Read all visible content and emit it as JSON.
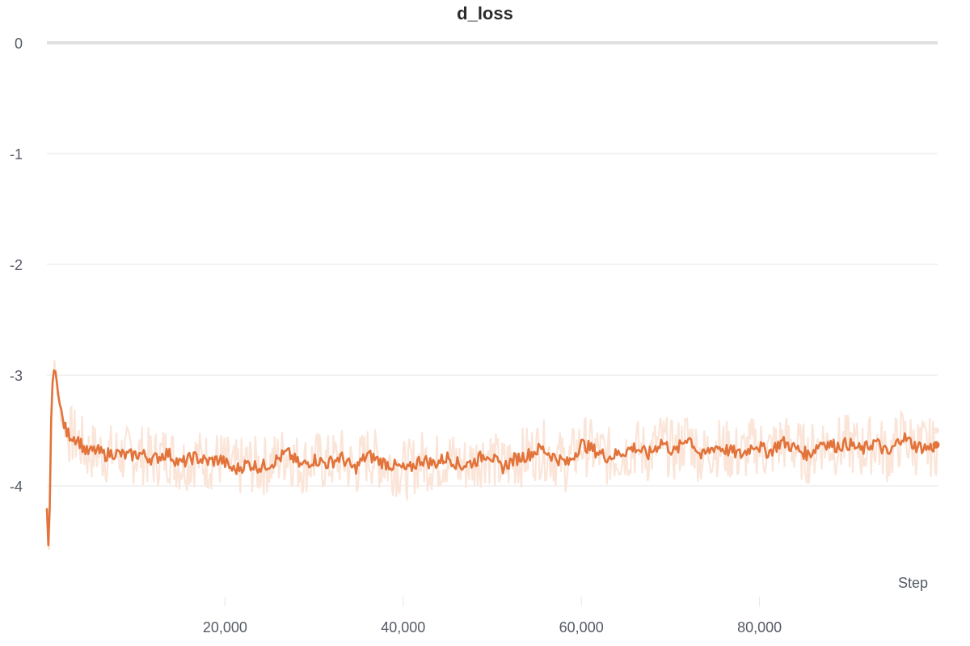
{
  "chart_data": {
    "type": "line",
    "title": "d_loss",
    "xlabel": "Step",
    "ylabel": "",
    "xlim": [
      0,
      100000
    ],
    "ylim": [
      -5,
      0
    ],
    "x_ticks": [
      20000,
      40000,
      60000,
      80000
    ],
    "x_tick_labels": [
      "20,000",
      "40,000",
      "60,000",
      "80,000"
    ],
    "y_ticks": [
      0,
      -1,
      -2,
      -3,
      -4
    ],
    "y_tick_labels": [
      "0",
      "-1",
      "-2",
      "-3",
      "-4"
    ],
    "grid": true,
    "colors": {
      "line": "#e2733a",
      "raw": "#fbe5d9",
      "grid": "#e6e6e6",
      "zero_line": "#e0e0e0"
    },
    "series": [
      {
        "style": "smoothed",
        "x": [
          0,
          200,
          350,
          500,
          700,
          1000,
          1300,
          1700,
          2200,
          2800,
          3500,
          4500,
          5500,
          6500,
          7500,
          9000,
          10500,
          12000,
          13500,
          15000,
          16500,
          18000,
          19500,
          21000,
          22500,
          24000,
          25500,
          27000,
          28500,
          30000,
          31500,
          33000,
          34500,
          36000,
          37500,
          39000,
          40500,
          42000,
          43500,
          45000,
          46500,
          48000,
          49500,
          51000,
          52500,
          54000,
          55500,
          57000,
          58500,
          60000,
          61500,
          63000,
          64500,
          66000,
          67500,
          69000,
          70500,
          72000,
          73500,
          75000,
          76500,
          78000,
          79500,
          81000,
          82500,
          84000,
          85500,
          87000,
          88500,
          90000,
          91500,
          93000,
          94500,
          96000,
          97500,
          99000,
          100000
        ],
        "y": [
          -4.2,
          -4.62,
          -4.1,
          -3.3,
          -2.95,
          -2.97,
          -3.2,
          -3.38,
          -3.52,
          -3.55,
          -3.58,
          -3.7,
          -3.68,
          -3.72,
          -3.7,
          -3.73,
          -3.71,
          -3.76,
          -3.7,
          -3.8,
          -3.74,
          -3.78,
          -3.76,
          -3.86,
          -3.8,
          -3.83,
          -3.78,
          -3.7,
          -3.82,
          -3.76,
          -3.8,
          -3.74,
          -3.85,
          -3.72,
          -3.78,
          -3.82,
          -3.86,
          -3.76,
          -3.8,
          -3.74,
          -3.82,
          -3.78,
          -3.7,
          -3.84,
          -3.76,
          -3.72,
          -3.66,
          -3.74,
          -3.8,
          -3.62,
          -3.68,
          -3.74,
          -3.7,
          -3.65,
          -3.72,
          -3.6,
          -3.7,
          -3.55,
          -3.74,
          -3.64,
          -3.68,
          -3.72,
          -3.62,
          -3.7,
          -3.6,
          -3.66,
          -3.72,
          -3.6,
          -3.64,
          -3.62,
          -3.68,
          -3.6,
          -3.72,
          -3.55,
          -3.64,
          -3.66,
          -3.63
        ]
      }
    ]
  }
}
